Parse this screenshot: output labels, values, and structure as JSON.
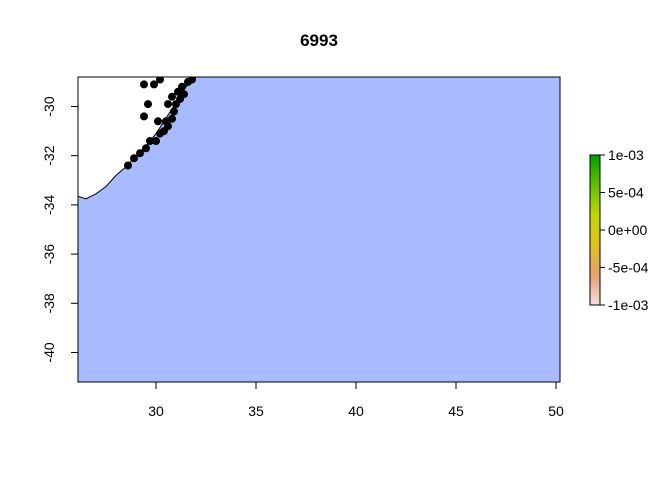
{
  "title": "6993",
  "map": {
    "type": "raster-map",
    "x_ticks": [
      30,
      35,
      40,
      45,
      50
    ],
    "y_ticks": [
      -30,
      -32,
      -34,
      -36,
      -38,
      -40
    ],
    "xlim": [
      26.1,
      50.2
    ],
    "ylim": [
      -41.2,
      -28.8
    ],
    "ocean_color": "#a9bbff",
    "land_color": "#ffffff",
    "point_color": "#000000",
    "coastline": [
      [
        26.1,
        -33.65
      ],
      [
        26.5,
        -33.75
      ],
      [
        27.0,
        -33.55
      ],
      [
        27.5,
        -33.25
      ],
      [
        28.0,
        -32.8
      ],
      [
        28.5,
        -32.45
      ],
      [
        29.0,
        -32.0
      ],
      [
        29.5,
        -31.6
      ],
      [
        30.0,
        -31.1
      ],
      [
        30.4,
        -30.6
      ],
      [
        30.8,
        -30.1
      ],
      [
        31.1,
        -29.7
      ],
      [
        31.4,
        -29.3
      ],
      [
        31.7,
        -29.0
      ],
      [
        32.0,
        -28.8
      ]
    ],
    "points": [
      [
        28.6,
        -32.4
      ],
      [
        28.9,
        -32.1
      ],
      [
        29.2,
        -31.9
      ],
      [
        29.5,
        -31.7
      ],
      [
        29.7,
        -31.4
      ],
      [
        30.0,
        -31.4
      ],
      [
        30.2,
        -31.1
      ],
      [
        30.4,
        -31.0
      ],
      [
        30.6,
        -30.8
      ],
      [
        30.8,
        -30.5
      ],
      [
        30.9,
        -30.2
      ],
      [
        31.0,
        -29.9
      ],
      [
        31.2,
        -29.7
      ],
      [
        31.4,
        -29.5
      ],
      [
        31.3,
        -29.2
      ],
      [
        31.6,
        -29.0
      ],
      [
        31.8,
        -28.9
      ],
      [
        30.1,
        -30.6
      ],
      [
        30.5,
        -30.6
      ],
      [
        29.4,
        -30.4
      ],
      [
        29.6,
        -29.9
      ],
      [
        29.4,
        -29.1
      ],
      [
        29.9,
        -29.1
      ],
      [
        30.2,
        -28.9
      ],
      [
        30.6,
        -29.9
      ],
      [
        30.8,
        -29.6
      ],
      [
        31.1,
        -29.4
      ]
    ]
  },
  "legend": {
    "labels": [
      "1e-03",
      "5e-04",
      "0e+00",
      "-5e-04",
      "-1e-03"
    ],
    "range": [
      -0.001,
      0.001
    ],
    "gradient_colors": [
      "#f2e0e0",
      "#e8a070",
      "#e0c020",
      "#c0d800",
      "#60c000",
      "#00a000"
    ]
  }
}
